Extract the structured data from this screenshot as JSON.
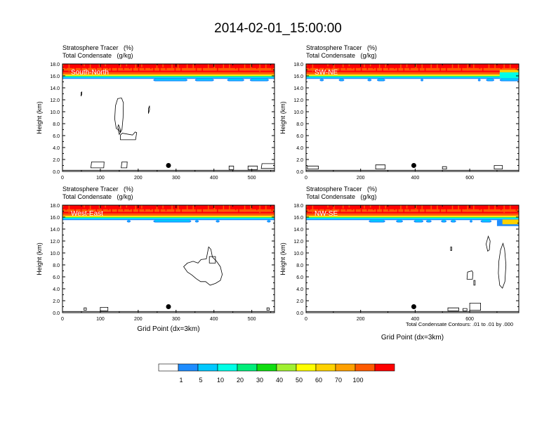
{
  "title": "2014-02-01_15:00:00",
  "panel_labels": {
    "title_line1": "Stratosphere Tracer   (%)",
    "title_line2": "Total Condensate   (g/kg)"
  },
  "y_axis_label": "Height (km)",
  "x_axis_label": "Grid Point (dx=3km)",
  "contour_note": "Total Condensate Contours: .01 to .01 by .000",
  "colorbar": {
    "colors": [
      "#ffffff",
      "#1e8cff",
      "#00c8ff",
      "#00ffe6",
      "#00ee7a",
      "#10dd10",
      "#a0f030",
      "#ffff00",
      "#ffd200",
      "#ffa000",
      "#ff5a00",
      "#ff0000"
    ],
    "labels": [
      "1",
      "5",
      "10",
      "20",
      "30",
      "40",
      "50",
      "60",
      "70",
      "100"
    ]
  },
  "chart_data": [
    {
      "type": "heatmap",
      "cross_section": "South-North",
      "xlim": [
        0,
        560
      ],
      "ylim": [
        0,
        18
      ],
      "x_ticks": [
        0,
        100,
        200,
        300,
        400,
        500
      ],
      "x_tick_labels": [
        "0",
        "100",
        "200",
        "300",
        "400",
        "500"
      ],
      "y_ticks": [
        0,
        2,
        4,
        6,
        8,
        10,
        12,
        14,
        16,
        18
      ],
      "y_tick_labels": [
        "0.0",
        "2.0",
        "4.0",
        "6.0",
        "8.0",
        "10.0",
        "12.0",
        "14.0",
        "16.0",
        "18.0"
      ],
      "marker_x": 280
    },
    {
      "type": "heatmap",
      "cross_section": "SW-NE",
      "xlim": [
        0,
        780
      ],
      "ylim": [
        0,
        18
      ],
      "x_ticks": [
        0,
        200,
        400,
        600
      ],
      "x_tick_labels": [
        "0",
        "200",
        "400",
        "600"
      ],
      "y_ticks": [
        0,
        2,
        4,
        6,
        8,
        10,
        12,
        14,
        16,
        18
      ],
      "y_tick_labels": [
        "0.0",
        "2.0",
        "4.0",
        "6.0",
        "8.0",
        "10.0",
        "12.0",
        "14.0",
        "16.0",
        "18.0"
      ],
      "marker_x": 395
    },
    {
      "type": "heatmap",
      "cross_section": "West-East",
      "xlim": [
        0,
        560
      ],
      "ylim": [
        0,
        18
      ],
      "x_ticks": [
        0,
        100,
        200,
        300,
        400,
        500
      ],
      "x_tick_labels": [
        "0",
        "100",
        "200",
        "300",
        "400",
        "500"
      ],
      "y_ticks": [
        0,
        2,
        4,
        6,
        8,
        10,
        12,
        14,
        16,
        18
      ],
      "y_tick_labels": [
        "0.0",
        "2.0",
        "4.0",
        "6.0",
        "8.0",
        "10.0",
        "12.0",
        "14.0",
        "16.0",
        "18.0"
      ],
      "marker_x": 280
    },
    {
      "type": "heatmap",
      "cross_section": "NW-SE",
      "xlim": [
        0,
        780
      ],
      "ylim": [
        0,
        18
      ],
      "x_ticks": [
        0,
        200,
        400,
        600
      ],
      "x_tick_labels": [
        "0",
        "200",
        "400",
        "600"
      ],
      "y_ticks": [
        0,
        2,
        4,
        6,
        8,
        10,
        12,
        14,
        16,
        18
      ],
      "y_tick_labels": [
        "0.0",
        "2.0",
        "4.0",
        "6.0",
        "8.0",
        "10.0",
        "12.0",
        "14.0",
        "16.0",
        "18.0"
      ],
      "marker_x": 395
    }
  ]
}
